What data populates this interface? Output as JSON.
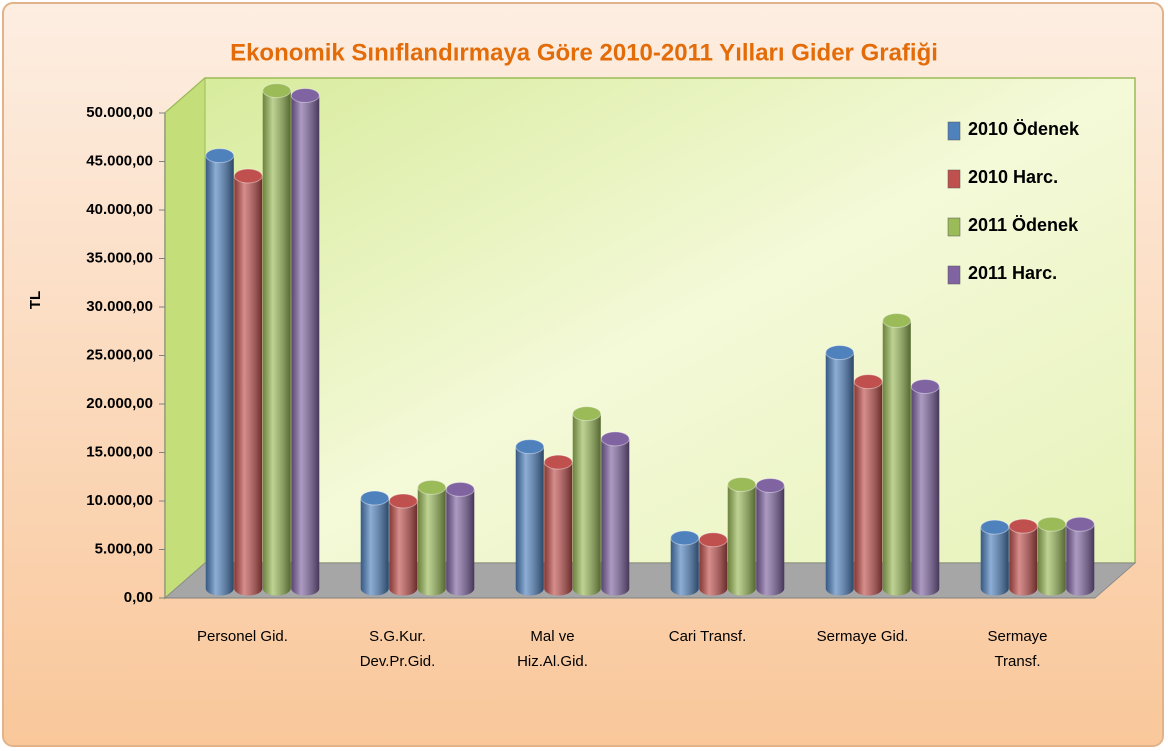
{
  "chart_data": {
    "type": "bar3d",
    "title": "Ekonomik Sınıflandırmaya Göre 2010-2011 Yılları Gider Grafiği",
    "ylabel": "TL",
    "categories": [
      "Personel Gid.",
      "S.G.Kur.\nDev.Pr.Gid.",
      "Mal ve\nHiz.Al.Gid.",
      "Cari Transf.",
      "Sermaye Gid.",
      "Sermaye\nTransf."
    ],
    "series": [
      {
        "name": "2010 Ödenek",
        "color": "#4f81bd",
        "values": [
          43800,
          8500,
          13800,
          4400,
          23500,
          5500
        ]
      },
      {
        "name": "2010 Harc.",
        "color": "#c0504d",
        "values": [
          41700,
          8200,
          12200,
          4200,
          20500,
          5600
        ]
      },
      {
        "name": "2011 Ödenek",
        "color": "#9bbb59",
        "values": [
          50500,
          9600,
          17200,
          9900,
          26800,
          5800
        ]
      },
      {
        "name": "2011 Harc.",
        "color": "#8064a2",
        "values": [
          50000,
          9400,
          14600,
          9800,
          20000,
          5800
        ]
      }
    ],
    "ylim": [
      0,
      50000
    ],
    "yticks": [
      {
        "value": 0,
        "label": "0,00"
      },
      {
        "value": 5000,
        "label": "5.000,00"
      },
      {
        "value": 10000,
        "label": "10.000,00"
      },
      {
        "value": 15000,
        "label": "15.000,00"
      },
      {
        "value": 20000,
        "label": "20.000,00"
      },
      {
        "value": 25000,
        "label": "25.000,00"
      },
      {
        "value": 30000,
        "label": "30.000,00"
      },
      {
        "value": 35000,
        "label": "35.000,00"
      },
      {
        "value": 40000,
        "label": "40.000,00"
      },
      {
        "value": 45000,
        "label": "45.000,00"
      },
      {
        "value": 50000,
        "label": "50.000,00"
      }
    ],
    "legend": "top-right"
  }
}
